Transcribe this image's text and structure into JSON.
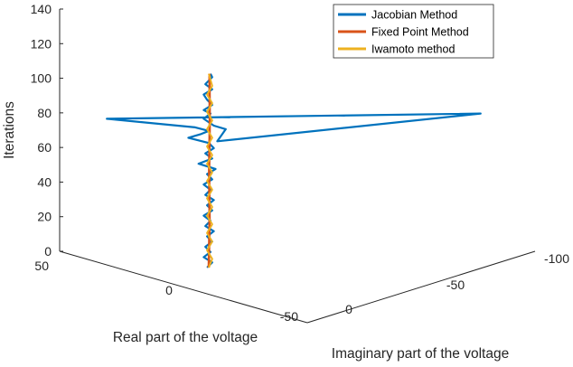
{
  "chart_data": {
    "type": "line",
    "ylabel": "Iterations",
    "xlabel": "Real part of the voltage",
    "zlabel": "Imaginary part of the voltage",
    "iteration_ticks": [
      "0",
      "20",
      "40",
      "60",
      "80",
      "100",
      "120",
      "140"
    ],
    "iteration_lim": [
      0,
      140
    ],
    "real_ticks": [
      "50",
      "0",
      "-50"
    ],
    "imag_ticks": [
      "0",
      "-50",
      "-100"
    ],
    "legend_position": "top-right",
    "series": [
      {
        "name": "Jacobian Method",
        "color": "#0072BD",
        "points": [
          [
            -1,
            0,
            0
          ],
          [
            2,
            0,
            3
          ],
          [
            -3,
            0,
            6
          ],
          [
            1,
            0,
            9
          ],
          [
            -2,
            0,
            12
          ],
          [
            2,
            0,
            15
          ],
          [
            -1,
            0,
            18
          ],
          [
            3,
            0,
            21
          ],
          [
            -2,
            0,
            24
          ],
          [
            1,
            0,
            27
          ],
          [
            -3,
            0,
            30
          ],
          [
            2,
            0,
            33
          ],
          [
            -1,
            0,
            36
          ],
          [
            3,
            0,
            39
          ],
          [
            -2,
            0,
            42
          ],
          [
            1,
            0,
            45
          ],
          [
            -3,
            0,
            48
          ],
          [
            2,
            0,
            51
          ],
          [
            -1,
            0,
            54
          ],
          [
            4,
            0,
            57
          ],
          [
            -6,
            0,
            60
          ],
          [
            2,
            0,
            63
          ],
          [
            -2,
            0,
            66
          ],
          [
            3,
            0,
            69
          ],
          [
            0,
            0,
            72
          ],
          [
            -12,
            0,
            75
          ],
          [
            -5,
            0,
            77
          ],
          [
            0,
            0,
            79
          ],
          [
            -8,
            0,
            81
          ],
          [
            -60,
            0,
            86
          ],
          [
            160,
            0,
            89
          ],
          [
            5,
            0,
            73
          ],
          [
            10,
            0,
            80
          ],
          [
            3,
            0,
            82
          ],
          [
            -3,
            0,
            86
          ],
          [
            1,
            0,
            89
          ],
          [
            -3,
            0,
            91
          ],
          [
            2,
            0,
            94
          ],
          [
            -1,
            0,
            97
          ],
          [
            -3,
            0,
            100
          ],
          [
            2,
            0,
            103
          ],
          [
            -2,
            0,
            106
          ],
          [
            2,
            0,
            110
          ],
          [
            1,
            0,
            112
          ]
        ]
      },
      {
        "name": "Fixed Point Method",
        "color": "#D95319",
        "points": [
          [
            0,
            0,
            0
          ],
          [
            0.5,
            0,
            28
          ],
          [
            0.2,
            0,
            56
          ],
          [
            0.6,
            0,
            84
          ],
          [
            0.4,
            0,
            112
          ]
        ]
      },
      {
        "name": "Iwamoto method",
        "color": "#EDB120",
        "points": [
          [
            0,
            0,
            0
          ],
          [
            2,
            0,
            5
          ],
          [
            -1,
            0,
            10
          ],
          [
            2,
            0,
            15
          ],
          [
            -1,
            0,
            20
          ],
          [
            2,
            0,
            25
          ],
          [
            -1,
            0,
            30
          ],
          [
            2,
            0,
            35
          ],
          [
            -1,
            0,
            40
          ],
          [
            2,
            0,
            45
          ],
          [
            -1,
            0,
            50
          ],
          [
            2,
            0,
            55
          ],
          [
            -1,
            0,
            60
          ],
          [
            2,
            0,
            65
          ],
          [
            -1,
            0,
            70
          ],
          [
            2,
            0,
            75
          ],
          [
            -1,
            0,
            80
          ],
          [
            2,
            0,
            85
          ],
          [
            -1,
            0,
            90
          ],
          [
            2,
            0,
            95
          ],
          [
            -1,
            0,
            100
          ],
          [
            2,
            0,
            105
          ],
          [
            0,
            0,
            112
          ]
        ]
      }
    ]
  }
}
